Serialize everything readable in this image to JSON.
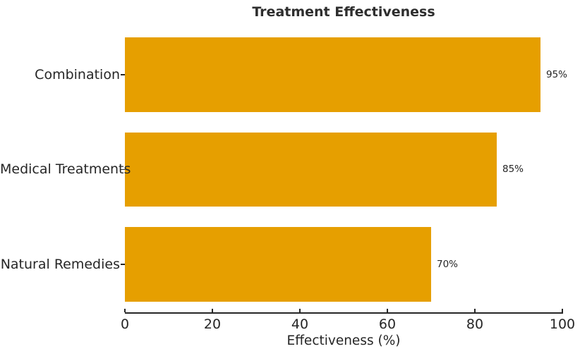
{
  "chart_data": {
    "type": "bar",
    "orientation": "horizontal",
    "title": "Treatment Effectiveness",
    "xlabel": "Effectiveness (%)",
    "ylabel": "",
    "categories": [
      "Combination",
      "Medical Treatments",
      "Natural Remedies"
    ],
    "values": [
      95,
      85,
      70
    ],
    "value_labels": [
      "95%",
      "85%",
      "70%"
    ],
    "xlim": [
      0,
      100
    ],
    "xticks": [
      0,
      20,
      40,
      60,
      80,
      100
    ],
    "bar_color": "#E69F00",
    "text_color": "#262626",
    "grid": false,
    "legend": "none",
    "axis_style": "bottom-spine-only, x ticks pointing inward"
  }
}
